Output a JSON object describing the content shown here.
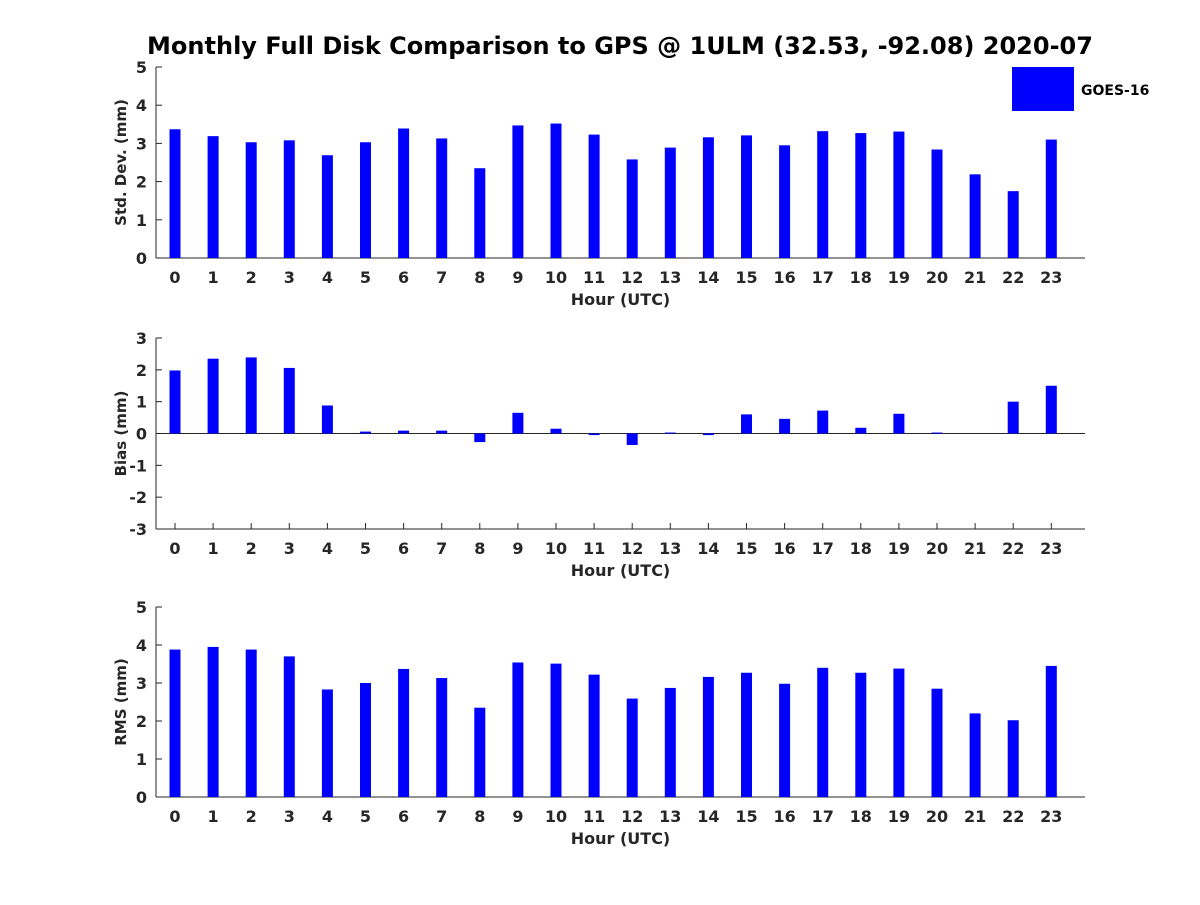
{
  "title": "Monthly Full Disk Comparison to GPS @ 1ULM (32.53, -92.08) 2020-07",
  "legend": {
    "label": "GOES-16",
    "color": "#0000ff",
    "placement": "top-right"
  },
  "chart_data": [
    {
      "type": "bar",
      "title": "",
      "xlabel": "Hour (UTC)",
      "ylabel": "Std. Dev. (mm)",
      "ylim": [
        0,
        5
      ],
      "yticks": [
        "0",
        "1",
        "2",
        "3",
        "4",
        "5"
      ],
      "categories": [
        "0",
        "1",
        "2",
        "3",
        "4",
        "5",
        "6",
        "7",
        "8",
        "9",
        "10",
        "11",
        "12",
        "13",
        "14",
        "15",
        "16",
        "17",
        "18",
        "19",
        "20",
        "21",
        "22",
        "23"
      ],
      "series": [
        {
          "name": "GOES-16",
          "values": [
            3.37,
            3.19,
            3.03,
            3.08,
            2.69,
            3.03,
            3.39,
            3.13,
            2.35,
            3.47,
            3.52,
            3.23,
            2.58,
            2.89,
            3.16,
            3.21,
            2.95,
            3.32,
            3.27,
            3.31,
            2.84,
            2.19,
            1.75,
            3.1
          ]
        }
      ]
    },
    {
      "type": "bar",
      "title": "",
      "xlabel": "Hour (UTC)",
      "ylabel": "Bias (mm)",
      "ylim": [
        -3,
        3
      ],
      "yticks": [
        "-3",
        "-2",
        "-1",
        "0",
        "1",
        "2",
        "3"
      ],
      "categories": [
        "0",
        "1",
        "2",
        "3",
        "4",
        "5",
        "6",
        "7",
        "8",
        "9",
        "10",
        "11",
        "12",
        "13",
        "14",
        "15",
        "16",
        "17",
        "18",
        "19",
        "20",
        "21",
        "22",
        "23"
      ],
      "series": [
        {
          "name": "GOES-16",
          "values": [
            1.98,
            2.35,
            2.39,
            2.06,
            0.88,
            0.06,
            0.09,
            0.09,
            -0.27,
            0.65,
            0.15,
            -0.05,
            -0.36,
            0.03,
            -0.05,
            0.6,
            0.46,
            0.72,
            0.18,
            0.62,
            0.03,
            0.0,
            1.0,
            1.5
          ]
        }
      ]
    },
    {
      "type": "bar",
      "title": "",
      "xlabel": "Hour (UTC)",
      "ylabel": "RMS (mm)",
      "ylim": [
        0,
        5
      ],
      "yticks": [
        "0",
        "1",
        "2",
        "3",
        "4",
        "5"
      ],
      "categories": [
        "0",
        "1",
        "2",
        "3",
        "4",
        "5",
        "6",
        "7",
        "8",
        "9",
        "10",
        "11",
        "12",
        "13",
        "14",
        "15",
        "16",
        "17",
        "18",
        "19",
        "20",
        "21",
        "22",
        "23"
      ],
      "series": [
        {
          "name": "GOES-16",
          "values": [
            3.88,
            3.95,
            3.88,
            3.7,
            2.83,
            3.0,
            3.37,
            3.13,
            2.35,
            3.54,
            3.51,
            3.22,
            2.59,
            2.87,
            3.16,
            3.27,
            2.98,
            3.4,
            3.27,
            3.38,
            2.85,
            2.2,
            2.02,
            3.45
          ]
        }
      ]
    }
  ]
}
